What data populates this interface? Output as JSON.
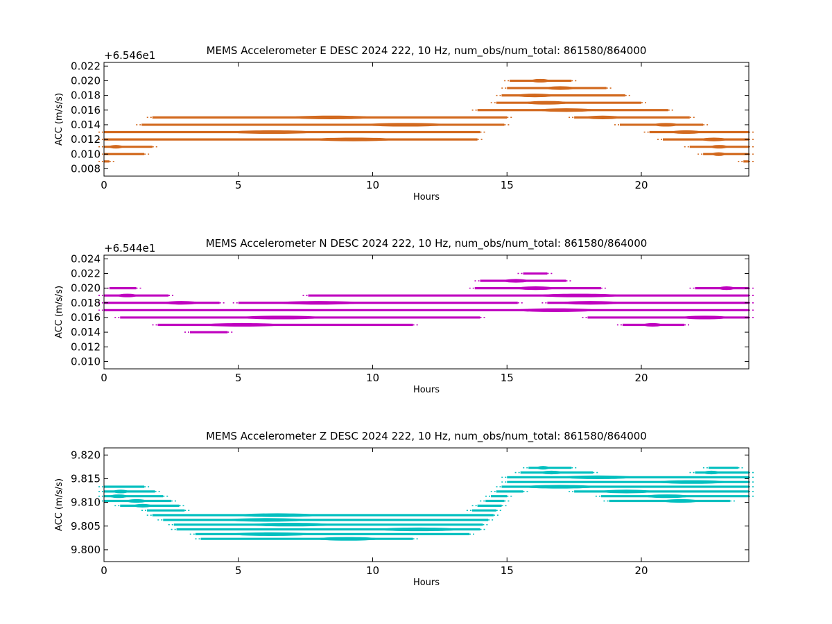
{
  "colors": {
    "e": "#d2691e",
    "n": "#bf00bf",
    "z": "#00bfbf",
    "axis": "#000000"
  },
  "chart_data": [
    {
      "type": "scatter",
      "title": "MEMS Accelerometer E DESC 2024 222, 10 Hz, num_obs/num_total: 861580/864000",
      "xlabel": "Hours",
      "ylabel": "ACC (m/s/s)",
      "offset_label": "+6.546e1",
      "xlim": [
        0,
        24
      ],
      "ylim": [
        0.007,
        0.0225
      ],
      "xticks": [
        "0",
        "5",
        "10",
        "15",
        "20"
      ],
      "yticks": [
        "0.008",
        "0.010",
        "0.012",
        "0.014",
        "0.016",
        "0.018",
        "0.020",
        "0.022"
      ],
      "grid": false,
      "series": [
        {
          "color_key": "e",
          "bands": [
            {
              "y": 0.02,
              "segments": [
                [
                  15.1,
                  17.4
                ]
              ]
            },
            {
              "y": 0.019,
              "segments": [
                [
                  15.0,
                  18.7
                ]
              ]
            },
            {
              "y": 0.018,
              "segments": [
                [
                  14.8,
                  19.4
                ]
              ]
            },
            {
              "y": 0.017,
              "segments": [
                [
                  14.6,
                  20.0
                ]
              ]
            },
            {
              "y": 0.016,
              "segments": [
                [
                  13.9,
                  21.0
                ]
              ]
            },
            {
              "y": 0.015,
              "segments": [
                [
                  1.8,
                  15.0
                ],
                [
                  17.5,
                  21.8
                ]
              ]
            },
            {
              "y": 0.014,
              "segments": [
                [
                  1.4,
                  14.9
                ],
                [
                  19.2,
                  22.3
                ]
              ]
            },
            {
              "y": 0.013,
              "segments": [
                [
                  0.0,
                  14.0
                ],
                [
                  20.3,
                  24.0
                ]
              ]
            },
            {
              "y": 0.012,
              "segments": [
                [
                  0.0,
                  13.9
                ],
                [
                  20.8,
                  24.0
                ]
              ]
            },
            {
              "y": 0.011,
              "segments": [
                [
                  0.0,
                  1.8
                ],
                [
                  21.8,
                  24.0
                ]
              ]
            },
            {
              "y": 0.01,
              "segments": [
                [
                  0.0,
                  1.5
                ],
                [
                  22.3,
                  24.0
                ]
              ]
            },
            {
              "y": 0.009,
              "segments": [
                [
                  0.0,
                  0.2
                ],
                [
                  23.8,
                  24.0
                ]
              ]
            }
          ]
        }
      ]
    },
    {
      "type": "scatter",
      "title": "MEMS Accelerometer N DESC 2024 222, 10 Hz, num_obs/num_total: 861580/864000",
      "xlabel": "Hours",
      "ylabel": "ACC (m/s/s)",
      "offset_label": "+6.544e1",
      "xlim": [
        0,
        24
      ],
      "ylim": [
        0.009,
        0.0245
      ],
      "xticks": [
        "0",
        "5",
        "10",
        "15",
        "20"
      ],
      "yticks": [
        "0.010",
        "0.012",
        "0.014",
        "0.016",
        "0.018",
        "0.020",
        "0.022",
        "0.024"
      ],
      "grid": false,
      "series": [
        {
          "color_key": "n",
          "bands": [
            {
              "y": 0.022,
              "segments": [
                [
                  15.6,
                  16.5
                ]
              ]
            },
            {
              "y": 0.021,
              "segments": [
                [
                  14.0,
                  17.2
                ]
              ]
            },
            {
              "y": 0.02,
              "segments": [
                [
                  0.2,
                  1.2
                ],
                [
                  13.8,
                  18.5
                ],
                [
                  22.0,
                  24.0
                ]
              ]
            },
            {
              "y": 0.019,
              "segments": [
                [
                  0.0,
                  2.4
                ],
                [
                  7.6,
                  24.0
                ]
              ]
            },
            {
              "y": 0.018,
              "segments": [
                [
                  0.0,
                  4.3
                ],
                [
                  5.0,
                  15.4
                ],
                [
                  16.5,
                  24.0
                ]
              ]
            },
            {
              "y": 0.017,
              "segments": [
                [
                  0.0,
                  24.0
                ]
              ]
            },
            {
              "y": 0.016,
              "segments": [
                [
                  0.6,
                  14.0
                ],
                [
                  18.0,
                  24.0
                ]
              ]
            },
            {
              "y": 0.015,
              "segments": [
                [
                  2.0,
                  11.5
                ],
                [
                  19.3,
                  21.6
                ]
              ]
            },
            {
              "y": 0.014,
              "segments": [
                [
                  3.2,
                  4.6
                ]
              ]
            }
          ]
        }
      ]
    },
    {
      "type": "scatter",
      "title": "MEMS Accelerometer Z DESC 2024 222, 10 Hz, num_obs/num_total: 861580/864000",
      "xlabel": "Hours",
      "ylabel": "ACC (m/s/s)",
      "offset_label": "",
      "xlim": [
        0,
        24
      ],
      "ylim": [
        9.7975,
        9.8215
      ],
      "xticks": [
        "0",
        "5",
        "10",
        "15",
        "20"
      ],
      "yticks": [
        "9.800",
        "9.805",
        "9.810",
        "9.815",
        "9.820"
      ],
      "grid": false,
      "series": [
        {
          "color_key": "z",
          "bands": [
            {
              "y": 9.8173,
              "segments": [
                [
                  15.8,
                  17.4
                ],
                [
                  22.5,
                  23.6
                ]
              ]
            },
            {
              "y": 9.8163,
              "segments": [
                [
                  15.5,
                  18.2
                ],
                [
                  22.0,
                  24.0
                ]
              ]
            },
            {
              "y": 9.8153,
              "segments": [
                [
                  15.0,
                  24.0
                ]
              ]
            },
            {
              "y": 9.8143,
              "segments": [
                [
                  15.0,
                  24.0
                ]
              ]
            },
            {
              "y": 9.8133,
              "segments": [
                [
                  0.0,
                  1.5
                ],
                [
                  14.8,
                  24.0
                ]
              ]
            },
            {
              "y": 9.8123,
              "segments": [
                [
                  0.0,
                  1.9
                ],
                [
                  14.6,
                  15.6
                ],
                [
                  17.5,
                  24.0
                ]
              ]
            },
            {
              "y": 9.8113,
              "segments": [
                [
                  0.0,
                  2.2
                ],
                [
                  14.4,
                  15.0
                ],
                [
                  18.5,
                  24.0
                ]
              ]
            },
            {
              "y": 9.8103,
              "segments": [
                [
                  0.0,
                  2.5
                ],
                [
                  14.2,
                  14.9
                ],
                [
                  18.8,
                  23.3
                ]
              ]
            },
            {
              "y": 9.8093,
              "segments": [
                [
                  0.6,
                  2.8
                ],
                [
                  13.9,
                  14.8
                ]
              ]
            },
            {
              "y": 9.8083,
              "segments": [
                [
                  1.6,
                  3.0
                ],
                [
                  13.7,
                  14.6
                ]
              ]
            },
            {
              "y": 9.8073,
              "segments": [
                [
                  1.8,
                  14.5
                ]
              ]
            },
            {
              "y": 9.8063,
              "segments": [
                [
                  2.2,
                  14.3
                ]
              ]
            },
            {
              "y": 9.8053,
              "segments": [
                [
                  2.6,
                  14.1
                ]
              ]
            },
            {
              "y": 9.8043,
              "segments": [
                [
                  2.7,
                  14.0
                ]
              ]
            },
            {
              "y": 9.8033,
              "segments": [
                [
                  3.4,
                  13.6
                ]
              ]
            },
            {
              "y": 9.8023,
              "segments": [
                [
                  3.6,
                  11.5
                ]
              ]
            }
          ]
        }
      ]
    }
  ]
}
